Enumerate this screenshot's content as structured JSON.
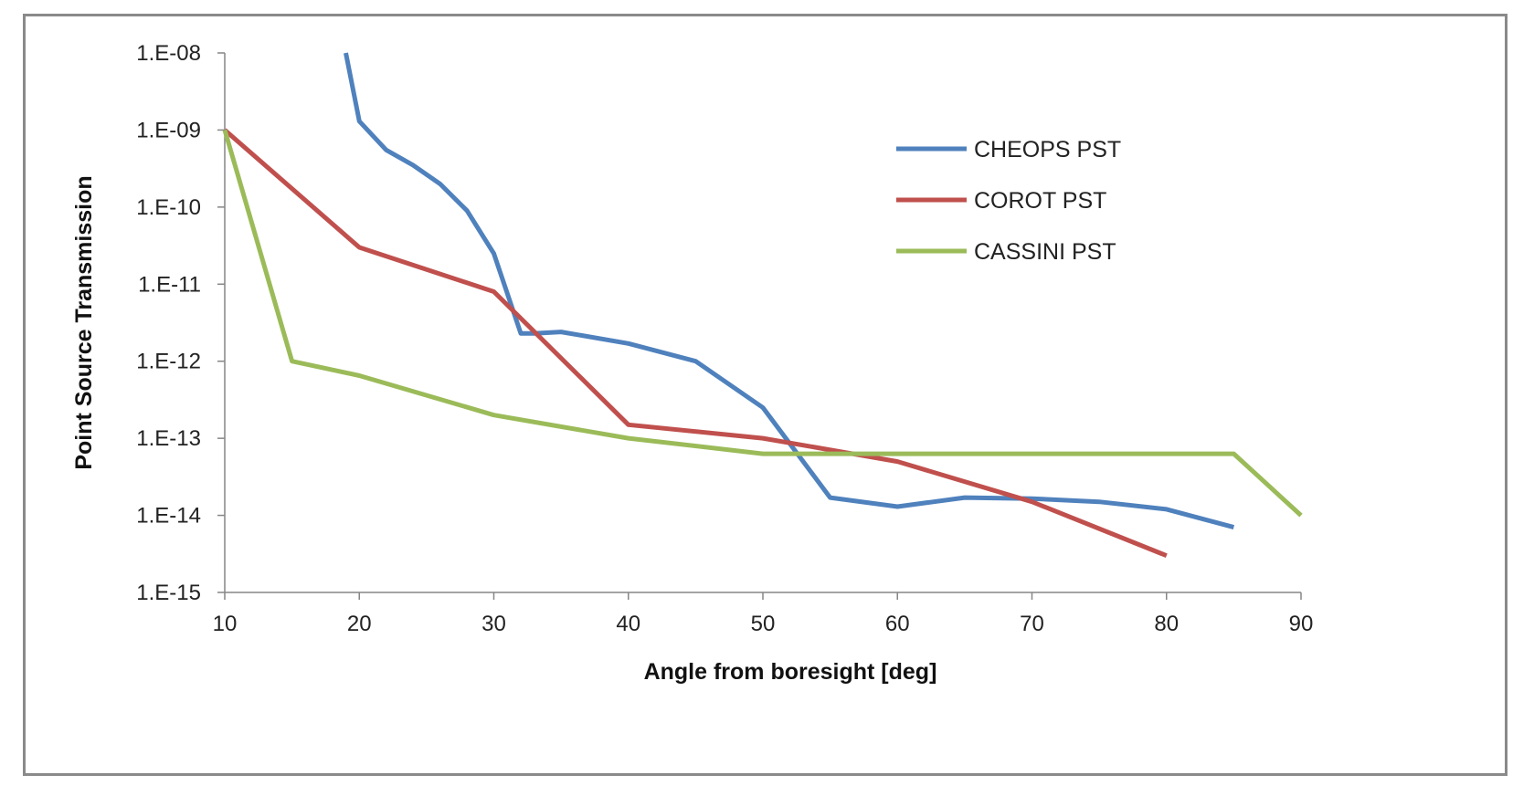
{
  "chart_data": {
    "type": "line",
    "title": "",
    "xlabel": "Angle from boresight [deg]",
    "ylabel": "Point Source Transmission",
    "xlim": [
      10,
      90
    ],
    "ylim": [
      1e-15,
      1e-08
    ],
    "yscale": "log",
    "grid": false,
    "legend_position": "top-right",
    "x_ticks": [
      10,
      20,
      30,
      40,
      50,
      60,
      70,
      80,
      90
    ],
    "x_tick_labels": [
      "10",
      "20",
      "30",
      "40",
      "50",
      "60",
      "70",
      "80",
      "90"
    ],
    "y_ticks": [
      1e-08,
      1e-09,
      1e-10,
      1e-11,
      1e-12,
      1e-13,
      1e-14,
      1e-15
    ],
    "y_tick_labels": [
      "1.E-08",
      "1.E-09",
      "1.E-10",
      "1.E-11",
      "1.E-12",
      "1.E-13",
      "1.E-14",
      "1.E-15"
    ],
    "series": [
      {
        "name": "CHEOPS PST",
        "color": "#4f81bd",
        "x": [
          19,
          20,
          22,
          24,
          26,
          28,
          30,
          32,
          33,
          35,
          40,
          45,
          50,
          55,
          60,
          65,
          70,
          75,
          80,
          85
        ],
        "y": [
          1e-08,
          1.3e-09,
          5.5e-10,
          3.5e-10,
          2e-10,
          9e-11,
          2.5e-11,
          2.3e-12,
          2.3e-12,
          2.4e-12,
          1.7e-12,
          1e-12,
          2.5e-13,
          1.7e-14,
          1.3e-14,
          1.7e-14,
          1.65e-14,
          1.5e-14,
          1.2e-14,
          7e-15
        ]
      },
      {
        "name": "COROT PST",
        "color": "#c0504d",
        "x": [
          10,
          20,
          30,
          40,
          50,
          60,
          70,
          80
        ],
        "y": [
          1e-09,
          3e-11,
          8e-12,
          1.5e-13,
          1e-13,
          5e-14,
          1.5e-14,
          3e-15
        ]
      },
      {
        "name": "CASSINI PST",
        "color": "#9bbb59",
        "x": [
          10,
          15,
          20,
          30,
          40,
          50,
          60,
          70,
          80,
          85,
          90
        ],
        "y": [
          1e-09,
          1e-12,
          6.5e-13,
          2e-13,
          1e-13,
          6.3e-14,
          6.3e-14,
          6.3e-14,
          6.3e-14,
          6.3e-14,
          1e-14
        ]
      }
    ]
  }
}
